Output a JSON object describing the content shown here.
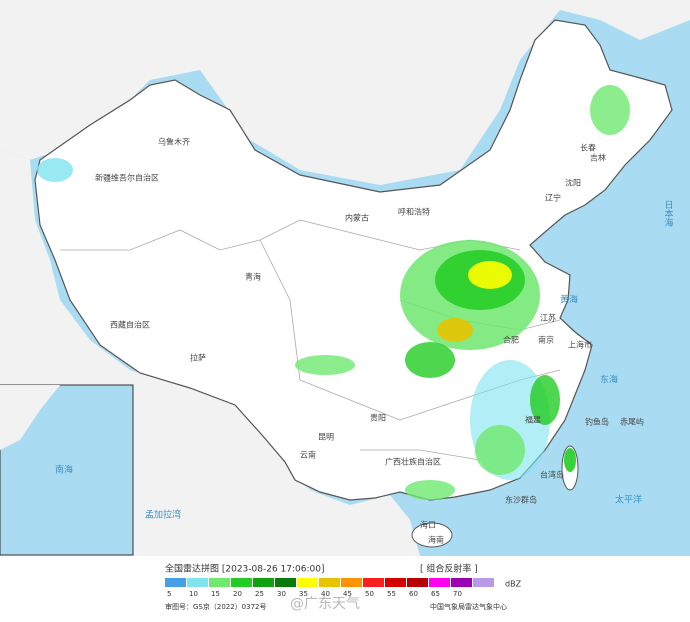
{
  "header": {
    "title": "全国雷达拼图 [2023-08-26 17:06:00]",
    "product": "[ 组合反射率 ]"
  },
  "legend": {
    "colors": [
      "#46a0e8",
      "#7fe3f0",
      "#6ee86e",
      "#22cc22",
      "#11a011",
      "#0b7a0b",
      "#ffff00",
      "#e8c400",
      "#ff9400",
      "#ff1e1e",
      "#d40000",
      "#b40000",
      "#ff00f0",
      "#9a00b4",
      "#b89ae8"
    ],
    "ticks": [
      5,
      10,
      15,
      20,
      25,
      30,
      35,
      40,
      45,
      50,
      55,
      60,
      65,
      70
    ],
    "unit": "dBZ"
  },
  "footer": {
    "approval": "审图号：GS京（2022）0372号",
    "source": "中国气象局雷达气象中心",
    "watermark": "@广东天气"
  },
  "map_labels": {
    "urumqi": "乌鲁木齐",
    "xinjiang": "新疆维吾尔自治区",
    "tibet": "西藏自治区",
    "lhasa": "拉萨",
    "qinghai": "青海",
    "inner_mongolia": "内蒙古",
    "hohhot": "呼和浩特",
    "jilin": "吉林",
    "changchun": "长春",
    "shenyang": "沈阳",
    "liaoning": "辽宁",
    "jiangsu": "江苏",
    "shanghai": "上海市",
    "nanjing": "南京",
    "hefei": "合肥",
    "fujian": "福建",
    "taiwan": "台湾岛",
    "guangxi": "广西壮族自治区",
    "yunnan": "云南",
    "kunming": "昆明",
    "guiyang": "贵阳",
    "haikou": "海口",
    "hainan": "海南",
    "south_sea": "南海",
    "dongsha": "东沙群岛",
    "pacific": "太平洋",
    "japan_sea": "日本海",
    "yellow_sea": "黄海",
    "east_sea": "东海",
    "bengal": "孟加拉湾",
    "diaoyu": "钓鱼岛",
    "chiwei": "赤尾屿"
  }
}
